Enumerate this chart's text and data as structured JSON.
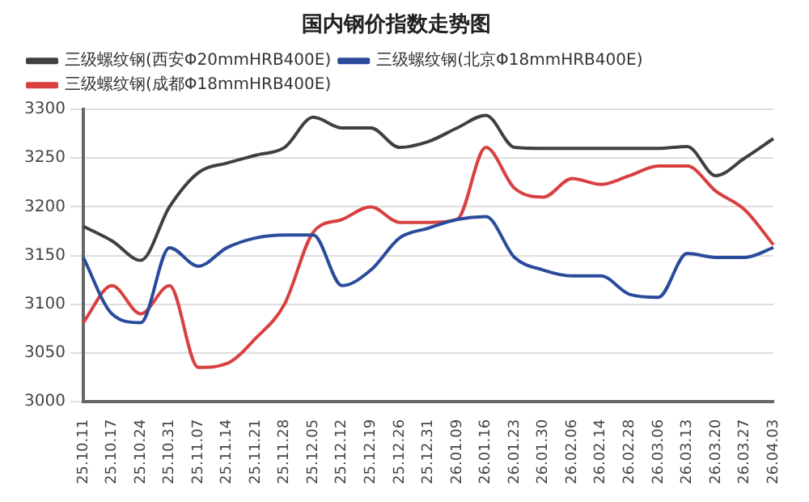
{
  "chart_data": {
    "type": "line",
    "title": "国内钢价指数走势图",
    "categories": [
      "25.10.11",
      "25.10.17",
      "25.10.24",
      "25.10.31",
      "25.11.07",
      "25.11.14",
      "25.11.21",
      "25.11.28",
      "25.12.05",
      "25.12.12",
      "25.12.19",
      "25.12.26",
      "25.12.31",
      "26.01.09",
      "26.01.16",
      "26.01.23",
      "26.01.30",
      "26.02.06",
      "26.02.14",
      "26.02.28",
      "26.03.06",
      "26.03.13",
      "26.03.20",
      "26.03.27",
      "26.04.03"
    ],
    "series": [
      {
        "name": "三级螺纹钢(西安Φ20mmHRB400E)",
        "color": "#404040",
        "values": [
          3180,
          3165,
          3145,
          3200,
          3235,
          3245,
          3253,
          3261,
          3292,
          3281,
          3281,
          3261,
          3267,
          3281,
          3294,
          3261,
          3260,
          3260,
          3260,
          3260,
          3260,
          3262,
          3232,
          3250,
          3270
        ]
      },
      {
        "name": "三级螺纹钢(北京Φ18mmHRB400E)",
        "color": "#2a4a9c",
        "values": [
          3148,
          3090,
          3081,
          3158,
          3139,
          3158,
          3168,
          3171,
          3171,
          3119,
          3135,
          3168,
          3178,
          3187,
          3190,
          3148,
          3135,
          3129,
          3129,
          3110,
          3107,
          3152,
          3148,
          3148,
          3158
        ]
      },
      {
        "name": "三级螺纹钢(成都Φ18mmHRB400E)",
        "color": "#d94040",
        "values": [
          3081,
          3119,
          3090,
          3119,
          3035,
          3039,
          3065,
          3100,
          3174,
          3187,
          3200,
          3184,
          3184,
          3187,
          3261,
          3219,
          3210,
          3229,
          3223,
          3232,
          3242,
          3242,
          3216,
          3197,
          3161
        ]
      }
    ],
    "ylim": [
      3000,
      3300
    ],
    "yticks": [
      3000,
      3050,
      3100,
      3150,
      3200,
      3250,
      3300
    ],
    "grid": "y",
    "legend": "top",
    "marker": "none",
    "line_style": "solid"
  }
}
